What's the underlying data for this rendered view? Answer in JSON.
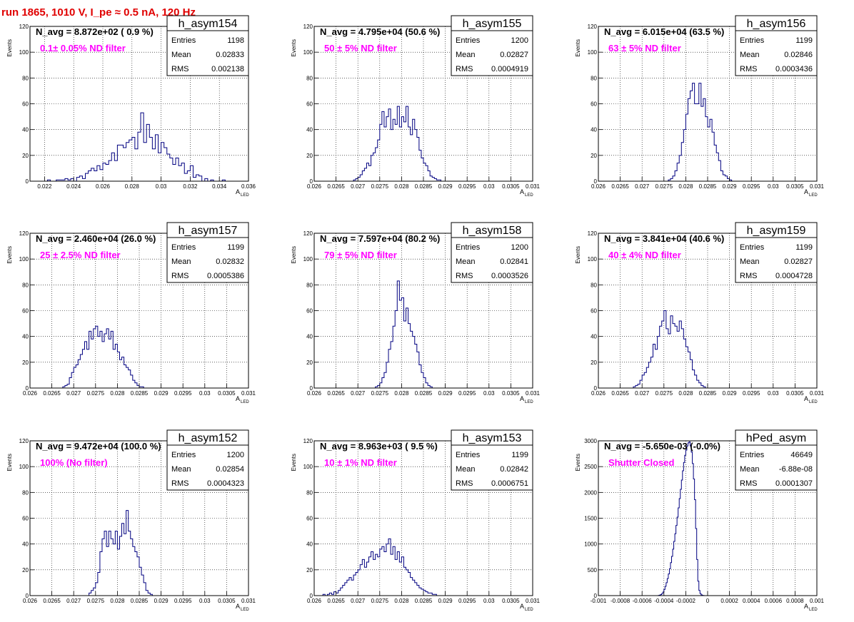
{
  "figure_title": "run 1865,  1010 V, I_pe ≈ 0.5 nA, 120 Hz",
  "x_axis_label_main": "A",
  "x_axis_label_sub": "LED",
  "y_axis_label": "Events",
  "stats_labels": [
    "Entries",
    "Mean",
    "RMS"
  ],
  "colors": {
    "histogram_line": "#000080",
    "annotation": "#ff00ff",
    "title": "#e00000",
    "grid": "#000000"
  },
  "chart_data": [
    {
      "type": "histogram",
      "name": "h_asym154",
      "navg": "N_avg = 8.872e+02 ( 0.9 %)",
      "filter_label": "0.1± 0.05% ND filter",
      "stats": [
        "1198",
        "0.02833",
        "0.002138"
      ],
      "xlim": [
        0.021,
        0.036
      ],
      "ylim": [
        0,
        120
      ],
      "xticks": [
        "0.022",
        "0.024",
        "0.026",
        "0.028",
        "0.03",
        "0.032",
        "0.034",
        "0.036"
      ],
      "xtick_values": [
        0.022,
        0.024,
        0.026,
        0.028,
        0.03,
        0.032,
        0.034,
        0.036
      ],
      "yticks": [
        "0",
        "20",
        "40",
        "60",
        "80",
        "100",
        "120"
      ],
      "bin_start": 0.0222,
      "bin_width": 0.0002,
      "counts": [
        1,
        0,
        0,
        1,
        1,
        1,
        2,
        1,
        2,
        0,
        3,
        4,
        2,
        6,
        8,
        10,
        8,
        12,
        9,
        14,
        13,
        16,
        22,
        16,
        28,
        28,
        26,
        30,
        32,
        34,
        25,
        38,
        53,
        30,
        44,
        34,
        25,
        36,
        22,
        30,
        26,
        21,
        18,
        13,
        18,
        12,
        14,
        6,
        8,
        12,
        3,
        5,
        4,
        0,
        2,
        0,
        1,
        0,
        0,
        0,
        1,
        0,
        0,
        0,
        0,
        0,
        0,
        0,
        0
      ]
    },
    {
      "type": "histogram",
      "name": "h_asym155",
      "navg": "N_avg = 4.795e+04 (50.6 %)",
      "filter_label": "50 ± 5% ND filter",
      "stats": [
        "1200",
        "0.02827",
        "0.0004919"
      ],
      "xlim": [
        0.026,
        0.031
      ],
      "ylim": [
        0,
        120
      ],
      "xticks": [
        "0.026",
        "0.0265",
        "0.027",
        "0.0275",
        "0.028",
        "0.0285",
        "0.029",
        "0.0295",
        "0.03",
        "0.0305",
        "0.031"
      ],
      "xtick_values": [
        0.026,
        0.0265,
        0.027,
        0.0275,
        0.028,
        0.0285,
        0.029,
        0.0295,
        0.03,
        0.0305,
        0.031
      ],
      "yticks": [
        "0",
        "20",
        "40",
        "60",
        "80",
        "100",
        "120"
      ],
      "bin_start": 0.0269,
      "bin_width": 5e-05,
      "counts": [
        1,
        2,
        3,
        5,
        8,
        10,
        14,
        12,
        20,
        22,
        26,
        32,
        44,
        54,
        42,
        50,
        56,
        40,
        48,
        44,
        58,
        42,
        50,
        46,
        58,
        42,
        36,
        48,
        40,
        34,
        24,
        18,
        14,
        12,
        8,
        4,
        3,
        2,
        1,
        1,
        0
      ]
    },
    {
      "type": "histogram",
      "name": "h_asym156",
      "navg": "N_avg = 6.015e+04 (63.5 %)",
      "filter_label": "63 ± 5% ND filter",
      "stats": [
        "1199",
        "0.02846",
        "0.0003436"
      ],
      "xlim": [
        0.026,
        0.031
      ],
      "ylim": [
        0,
        120
      ],
      "xticks": [
        "0.026",
        "0.0265",
        "0.027",
        "0.0275",
        "0.028",
        "0.0285",
        "0.029",
        "0.0295",
        "0.03",
        "0.0305",
        "0.031"
      ],
      "xtick_values": [
        0.026,
        0.0265,
        0.027,
        0.0275,
        0.028,
        0.0285,
        0.029,
        0.0295,
        0.03,
        0.0305,
        0.031
      ],
      "yticks": [
        "0",
        "20",
        "40",
        "60",
        "80",
        "100",
        "120"
      ],
      "bin_start": 0.0276,
      "bin_width": 5e-05,
      "counts": [
        1,
        2,
        4,
        8,
        14,
        20,
        30,
        40,
        52,
        64,
        70,
        76,
        60,
        60,
        76,
        58,
        64,
        50,
        42,
        48,
        38,
        28,
        22,
        16,
        8,
        5,
        4,
        2,
        1,
        0
      ]
    },
    {
      "type": "histogram",
      "name": "h_asym157",
      "navg": "N_avg = 2.460e+04 (26.0 %)",
      "filter_label": "25 ± 2.5% ND filter",
      "stats": [
        "1199",
        "0.02832",
        "0.0005386"
      ],
      "xlim": [
        0.026,
        0.031
      ],
      "ylim": [
        0,
        120
      ],
      "xticks": [
        "0.026",
        "0.0265",
        "0.027",
        "0.0275",
        "0.028",
        "0.0285",
        "0.029",
        "0.0295",
        "0.03",
        "0.0305",
        "0.031"
      ],
      "xtick_values": [
        0.026,
        0.0265,
        0.027,
        0.0275,
        0.028,
        0.0285,
        0.029,
        0.0295,
        0.03,
        0.0305,
        0.031
      ],
      "yticks": [
        "0",
        "20",
        "40",
        "60",
        "80",
        "100",
        "120"
      ],
      "bin_start": 0.02675,
      "bin_width": 5e-05,
      "counts": [
        1,
        2,
        3,
        8,
        12,
        16,
        18,
        22,
        26,
        30,
        36,
        30,
        44,
        38,
        46,
        48,
        40,
        44,
        36,
        42,
        46,
        38,
        44,
        30,
        34,
        28,
        22,
        24,
        18,
        16,
        14,
        10,
        6,
        4,
        2,
        1,
        1,
        0
      ]
    },
    {
      "type": "histogram",
      "name": "h_asym158",
      "navg": "N_avg = 7.597e+04 (80.2 %)",
      "filter_label": "79 ± 5% ND filter",
      "stats": [
        "1200",
        "0.02841",
        "0.0003526"
      ],
      "xlim": [
        0.026,
        0.031
      ],
      "ylim": [
        0,
        120
      ],
      "xticks": [
        "0.026",
        "0.0265",
        "0.027",
        "0.0275",
        "0.028",
        "0.0285",
        "0.029",
        "0.0295",
        "0.03",
        "0.0305",
        "0.031"
      ],
      "xtick_values": [
        0.026,
        0.0265,
        0.027,
        0.0275,
        0.028,
        0.0285,
        0.029,
        0.0295,
        0.03,
        0.0305,
        0.031
      ],
      "yticks": [
        "0",
        "20",
        "40",
        "60",
        "80",
        "100",
        "120"
      ],
      "bin_start": 0.0274,
      "bin_width": 5e-05,
      "counts": [
        1,
        2,
        4,
        8,
        12,
        20,
        30,
        36,
        48,
        60,
        83,
        68,
        70,
        52,
        62,
        50,
        44,
        40,
        34,
        28,
        18,
        12,
        8,
        4,
        2,
        1,
        0
      ]
    },
    {
      "type": "histogram",
      "name": "h_asym159",
      "navg": "N_avg = 3.841e+04 (40.6 %)",
      "filter_label": "40 ± 4% ND filter",
      "stats": [
        "1199",
        "0.02827",
        "0.0004728"
      ],
      "xlim": [
        0.026,
        0.031
      ],
      "ylim": [
        0,
        120
      ],
      "xticks": [
        "0.026",
        "0.0265",
        "0.027",
        "0.0275",
        "0.028",
        "0.0285",
        "0.029",
        "0.0295",
        "0.03",
        "0.0305",
        "0.031"
      ],
      "xtick_values": [
        0.026,
        0.0265,
        0.027,
        0.0275,
        0.028,
        0.0285,
        0.029,
        0.0295,
        0.03,
        0.0305,
        0.031
      ],
      "yticks": [
        "0",
        "20",
        "40",
        "60",
        "80",
        "100",
        "120"
      ],
      "bin_start": 0.0268,
      "bin_width": 5e-05,
      "counts": [
        1,
        2,
        3,
        6,
        10,
        12,
        16,
        20,
        24,
        34,
        30,
        40,
        48,
        52,
        60,
        46,
        42,
        56,
        50,
        48,
        44,
        52,
        46,
        38,
        32,
        28,
        22,
        14,
        10,
        6,
        4,
        2,
        1,
        0
      ]
    },
    {
      "type": "histogram",
      "name": "h_asym152",
      "navg": "N_avg = 9.472e+04 (100.0 %)",
      "filter_label": "100% (No filter)",
      "stats": [
        "1200",
        "0.02854",
        "0.0004323"
      ],
      "xlim": [
        0.026,
        0.031
      ],
      "ylim": [
        0,
        120
      ],
      "xticks": [
        "0.026",
        "0.0265",
        "0.027",
        "0.0275",
        "0.028",
        "0.0285",
        "0.029",
        "0.0295",
        "0.03",
        "0.0305",
        "0.031"
      ],
      "xtick_values": [
        0.026,
        0.0265,
        0.027,
        0.0275,
        0.028,
        0.0285,
        0.029,
        0.0295,
        0.03,
        0.0305,
        0.031
      ],
      "yticks": [
        "0",
        "20",
        "40",
        "60",
        "80",
        "100",
        "120"
      ],
      "bin_start": 0.02735,
      "bin_width": 5e-05,
      "counts": [
        2,
        4,
        6,
        10,
        18,
        34,
        44,
        50,
        38,
        50,
        44,
        40,
        50,
        36,
        46,
        56,
        48,
        66,
        50,
        44,
        38,
        34,
        30,
        22,
        16,
        10,
        4,
        2,
        1,
        0
      ]
    },
    {
      "type": "histogram",
      "name": "h_asym153",
      "navg": "N_avg = 8.963e+03 ( 9.5 %)",
      "filter_label": "10 ± 1% ND filter",
      "stats": [
        "1199",
        "0.02842",
        "0.0006751"
      ],
      "xlim": [
        0.026,
        0.031
      ],
      "ylim": [
        0,
        120
      ],
      "xticks": [
        "0.026",
        "0.0265",
        "0.027",
        "0.0275",
        "0.028",
        "0.0285",
        "0.029",
        "0.0295",
        "0.03",
        "0.0305",
        "0.031"
      ],
      "xtick_values": [
        0.026,
        0.0265,
        0.027,
        0.0275,
        0.028,
        0.0285,
        0.029,
        0.0295,
        0.03,
        0.0305,
        0.031
      ],
      "yticks": [
        "0",
        "20",
        "40",
        "60",
        "80",
        "100",
        "120"
      ],
      "bin_start": 0.0262,
      "bin_width": 5e-05,
      "counts": [
        1,
        0,
        1,
        2,
        1,
        3,
        2,
        4,
        6,
        8,
        10,
        12,
        14,
        12,
        16,
        18,
        20,
        24,
        28,
        22,
        26,
        30,
        34,
        28,
        32,
        30,
        36,
        38,
        34,
        40,
        44,
        32,
        38,
        28,
        34,
        26,
        30,
        22,
        20,
        18,
        14,
        12,
        10,
        8,
        6,
        5,
        4,
        3,
        2,
        2,
        1,
        1,
        0,
        0
      ]
    },
    {
      "type": "histogram",
      "name": "hPed_asym",
      "navg": "N_avg = -5.650e-03 (-0.0%)",
      "filter_label": "Shutter Closed",
      "stats": [
        "46649",
        "-6.88e-08",
        "0.0001307"
      ],
      "xlim": [
        -0.001,
        0.001
      ],
      "ylim": [
        0,
        3000
      ],
      "xticks": [
        "-0.001",
        "-0.0008",
        "-0.0006",
        "-0.0004",
        "-0.0002",
        "0",
        "0.0002",
        "0.0004",
        "0.0006",
        "0.0008",
        "0.001"
      ],
      "xtick_values": [
        -0.001,
        -0.0008,
        -0.0006,
        -0.0004,
        -0.0002,
        0,
        0.0002,
        0.0004,
        0.0006,
        0.0008,
        0.001
      ],
      "yticks": [
        "0",
        "500",
        "1000",
        "1500",
        "2000",
        "2500",
        "3000"
      ],
      "bin_start": -0.00045,
      "bin_width": 1e-05,
      "counts": [
        5,
        10,
        20,
        40,
        70,
        120,
        180,
        250,
        330,
        420,
        520,
        640,
        760,
        900,
        1050,
        1200,
        1360,
        1520,
        1700,
        1880,
        2060,
        2240,
        2420,
        2580,
        2720,
        2820,
        2900,
        2960,
        2980,
        2900,
        2780,
        2560,
        2260,
        1860,
        1300,
        700,
        280,
        100,
        40,
        15,
        6,
        2,
        0
      ]
    }
  ]
}
